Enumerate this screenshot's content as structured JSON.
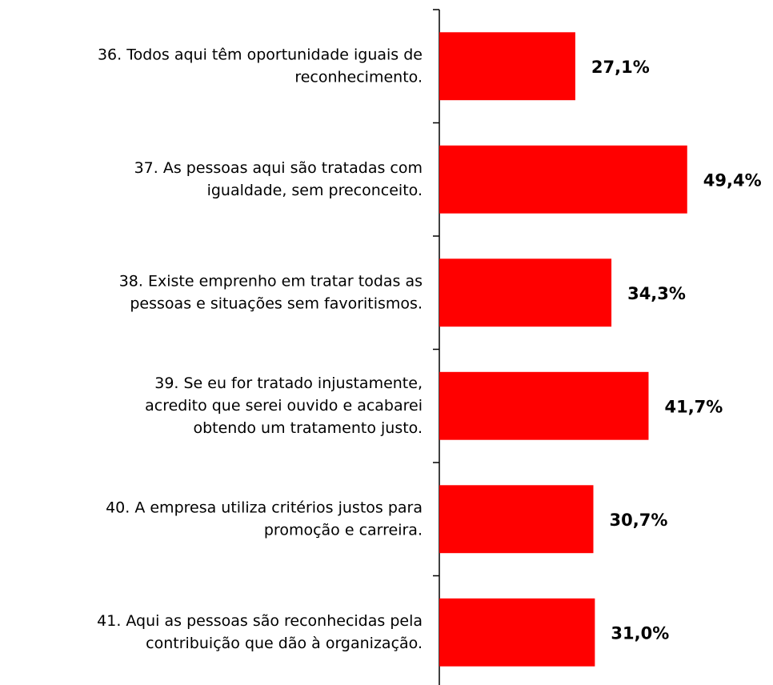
{
  "chart_data": {
    "type": "bar",
    "orientation": "horizontal",
    "categories": [
      [
        "36. Todos aqui têm oportunidade iguais de",
        "reconhecimento."
      ],
      [
        "37. As pessoas aqui são tratadas com",
        "igualdade, sem preconceito."
      ],
      [
        "38. Existe emprenho em tratar todas as",
        "pessoas e situações sem favoritismos."
      ],
      [
        "39. Se eu for tratado injustamente,",
        "acredito que serei ouvido e acabarei",
        "obtendo um tratamento justo."
      ],
      [
        "40. A empresa utiliza critérios justos para",
        "promoção e carreira."
      ],
      [
        "41. Aqui as pessoas são reconhecidas pela",
        "contribuição que dão à organização."
      ]
    ],
    "values": [
      27.1,
      49.4,
      34.3,
      41.7,
      30.7,
      31.0
    ],
    "value_labels": [
      "27,1%",
      "49,4%",
      "34,3%",
      "41,7%",
      "30,7%",
      "31,0%"
    ],
    "color": "#ff0000",
    "xlim": [
      0,
      66.5
    ]
  }
}
